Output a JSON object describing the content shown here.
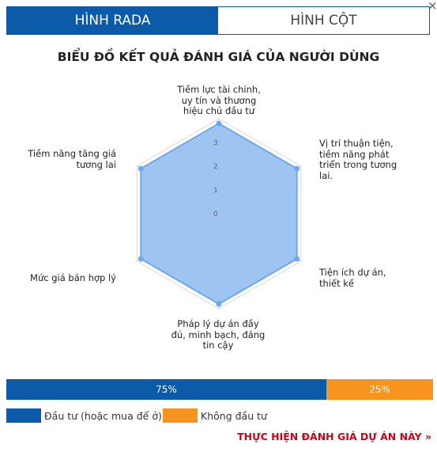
{
  "tabs": [
    {
      "label": "HÌNH RADA",
      "active": true
    },
    {
      "label": "HÌNH CỘT",
      "active": false
    }
  ],
  "close_symbol": "×",
  "chart_data": {
    "type": "radar",
    "title": "BIỂU ĐỒ KẾT QUẢ ĐÁNH GIÁ CỦA NGƯỜI DÙNG",
    "categories": [
      "Tiềm lực tài chính, uy tín và thương hiệu chủ đầu tư",
      "Vị trí thuận tiện, tiềm năng phát triển trong tương lai.",
      "Tiện ích dự án, thiết kế",
      "Pháp lý dự án đầy đủ, minh bạch, đáng tin cậy",
      "Mức giá bán hợp lý",
      "Tiềm năng tăng giá tương lai"
    ],
    "values": [
      3.8,
      3.8,
      3.8,
      3.8,
      3.8,
      3.8
    ],
    "range": [
      0,
      4
    ],
    "ticks": [
      "0",
      "1",
      "2",
      "3"
    ],
    "fill_color": "#99c2f0",
    "line_color": "#6fa8e8",
    "grid": true
  },
  "investment_bar": {
    "segments": [
      {
        "label": "75%",
        "value": 75,
        "color": "#0b5ba8"
      },
      {
        "label": "25%",
        "value": 25,
        "color": "#f7941d"
      }
    ]
  },
  "legend": [
    {
      "label": "Đầu tư (hoặc mua để ở)",
      "color": "#0b5ba8"
    },
    {
      "label": "Không đầu tư",
      "color": "#f7941d"
    }
  ],
  "cta_label": "THỰC HIỆN ĐÁNH GIÁ DỰ ÁN NÀY »"
}
